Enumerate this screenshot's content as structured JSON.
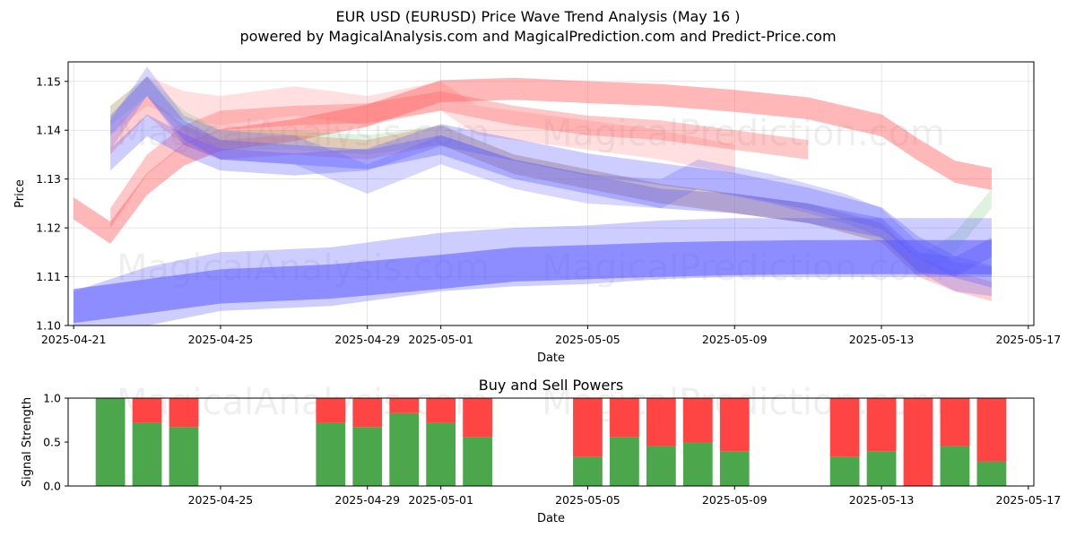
{
  "title": "EUR USD (EURUSD) Price Wave Trend Analysis (May 16 )",
  "subtitle": "powered by MagicalAnalysis.com and MagicalPrediction.com and Predict-Price.com",
  "watermarks": [
    "MagicalAnalysis.com",
    "MagicalPrediction.com"
  ],
  "chart_data": [
    {
      "type": "area",
      "xlabel": "Date",
      "ylabel": "Price",
      "x_range": [
        "2025-04-21",
        "2025-05-17"
      ],
      "ylim": [
        1.1,
        1.154
      ],
      "x_ticks": [
        "2025-04-21",
        "2025-04-25",
        "2025-04-29",
        "2025-05-01",
        "2025-05-05",
        "2025-05-09",
        "2025-05-13",
        "2025-05-17"
      ],
      "y_ticks": [
        "1.10",
        "1.11",
        "1.12",
        "1.13",
        "1.14",
        "1.15"
      ],
      "grid": true,
      "colors": {
        "red": "#ff6060",
        "blue": "#5a5aff",
        "green": "#60c060"
      },
      "bands": [
        {
          "color": "red",
          "opacity": 0.45,
          "width": 0.0045,
          "points": [
            [
              "2025-04-21",
              1.124
            ],
            [
              "2025-04-22",
              1.119
            ],
            [
              "2025-04-23",
              1.129
            ],
            [
              "2025-04-24",
              1.135
            ],
            [
              "2025-04-25",
              1.138
            ],
            [
              "2025-04-27",
              1.14
            ],
            [
              "2025-04-29",
              1.143
            ],
            [
              "2025-05-01",
              1.148
            ],
            [
              "2025-05-03",
              1.1485
            ],
            [
              "2025-05-05",
              1.1478
            ],
            [
              "2025-05-07",
              1.1472
            ],
            [
              "2025-05-09",
              1.146
            ],
            [
              "2025-05-11",
              1.1445
            ],
            [
              "2025-05-13",
              1.141
            ],
            [
              "2025-05-14",
              1.136
            ],
            [
              "2025-05-15",
              1.1315
            ],
            [
              "2025-05-16",
              1.13
            ]
          ]
        },
        {
          "color": "red",
          "opacity": 0.35,
          "width": 0.004,
          "points": [
            [
              "2025-04-22",
              1.122
            ],
            [
              "2025-04-23",
              1.133
            ],
            [
              "2025-04-24",
              1.139
            ],
            [
              "2025-04-25",
              1.142
            ],
            [
              "2025-04-27",
              1.143
            ],
            [
              "2025-04-29",
              1.1435
            ],
            [
              "2025-05-01",
              1.146
            ],
            [
              "2025-05-03",
              1.143
            ],
            [
              "2025-05-05",
              1.141
            ],
            [
              "2025-05-07",
              1.14
            ],
            [
              "2025-05-09",
              1.138
            ],
            [
              "2025-05-11",
              1.136
            ]
          ]
        },
        {
          "color": "red",
          "opacity": 0.2,
          "width": 0.006,
          "points": [
            [
              "2025-04-22",
              1.142
            ],
            [
              "2025-04-23",
              1.148
            ],
            [
              "2025-04-24",
              1.145
            ],
            [
              "2025-04-25",
              1.144
            ],
            [
              "2025-04-27",
              1.146
            ],
            [
              "2025-04-29",
              1.144
            ],
            [
              "2025-05-01",
              1.147
            ],
            [
              "2025-05-02",
              1.142
            ],
            [
              "2025-05-05",
              1.139
            ],
            [
              "2025-05-07",
              1.137
            ],
            [
              "2025-05-09",
              1.134
            ]
          ]
        },
        {
          "color": "red",
          "opacity": 0.3,
          "width": 0.004,
          "points": [
            [
              "2025-04-22",
              1.137
            ],
            [
              "2025-04-23",
              1.145
            ],
            [
              "2025-04-24",
              1.139
            ],
            [
              "2025-04-25",
              1.136
            ],
            [
              "2025-04-27",
              1.137
            ],
            [
              "2025-04-29",
              1.136
            ],
            [
              "2025-05-01",
              1.139
            ],
            [
              "2025-05-03",
              1.133
            ],
            [
              "2025-05-05",
              1.13
            ],
            [
              "2025-05-07",
              1.127
            ],
            [
              "2025-05-09",
              1.125
            ],
            [
              "2025-05-11",
              1.123
            ],
            [
              "2025-05-13",
              1.119
            ],
            [
              "2025-05-14",
              1.112
            ],
            [
              "2025-05-15",
              1.109
            ],
            [
              "2025-05-16",
              1.107
            ]
          ]
        },
        {
          "color": "green",
          "opacity": 0.2,
          "width": 0.004,
          "points": [
            [
              "2025-04-22",
              1.143
            ],
            [
              "2025-04-23",
              1.149
            ],
            [
              "2025-04-24",
              1.142
            ],
            [
              "2025-04-25",
              1.138
            ],
            [
              "2025-04-27",
              1.138
            ],
            [
              "2025-04-29",
              1.137
            ],
            [
              "2025-05-01",
              1.139
            ],
            [
              "2025-05-03",
              1.133
            ],
            [
              "2025-05-05",
              1.13
            ],
            [
              "2025-05-07",
              1.127
            ],
            [
              "2025-05-09",
              1.125
            ],
            [
              "2025-05-11",
              1.123
            ],
            [
              "2025-05-13",
              1.119
            ],
            [
              "2025-05-14",
              1.112
            ],
            [
              "2025-05-15",
              1.117
            ],
            [
              "2025-05-16",
              1.126
            ]
          ]
        },
        {
          "color": "blue",
          "opacity": 0.35,
          "width": 0.004,
          "points": [
            [
              "2025-04-22",
              1.141
            ],
            [
              "2025-04-23",
              1.149
            ],
            [
              "2025-04-24",
              1.14
            ],
            [
              "2025-04-25",
              1.136
            ],
            [
              "2025-04-27",
              1.135
            ],
            [
              "2025-04-29",
              1.134
            ],
            [
              "2025-05-01",
              1.137
            ],
            [
              "2025-05-03",
              1.132
            ],
            [
              "2025-05-05",
              1.129
            ],
            [
              "2025-05-07",
              1.126
            ],
            [
              "2025-05-09",
              1.125
            ],
            [
              "2025-05-11",
              1.123
            ],
            [
              "2025-05-13",
              1.12
            ],
            [
              "2025-05-14",
              1.113
            ],
            [
              "2025-05-15",
              1.112
            ],
            [
              "2025-05-16",
              1.116
            ]
          ]
        },
        {
          "color": "blue",
          "opacity": 0.25,
          "width": 0.006,
          "points": [
            [
              "2025-04-22",
              1.139
            ],
            [
              "2025-04-23",
              1.15
            ],
            [
              "2025-04-24",
              1.14
            ],
            [
              "2025-04-25",
              1.137
            ],
            [
              "2025-04-27",
              1.136
            ],
            [
              "2025-04-29",
              1.13
            ],
            [
              "2025-05-01",
              1.136
            ],
            [
              "2025-05-03",
              1.131
            ],
            [
              "2025-05-05",
              1.128
            ],
            [
              "2025-05-07",
              1.127
            ],
            [
              "2025-05-08",
              1.131
            ],
            [
              "2025-05-10",
              1.128
            ],
            [
              "2025-05-12",
              1.124
            ],
            [
              "2025-05-13",
              1.121
            ],
            [
              "2025-05-14",
              1.114
            ],
            [
              "2025-05-15",
              1.11
            ],
            [
              "2025-05-16",
              1.109
            ]
          ]
        },
        {
          "color": "blue",
          "opacity": 0.3,
          "width": 0.0045,
          "points": [
            [
              "2025-04-22",
              1.134
            ],
            [
              "2025-04-23",
              1.141
            ],
            [
              "2025-04-24",
              1.137
            ],
            [
              "2025-04-25",
              1.134
            ],
            [
              "2025-04-27",
              1.133
            ],
            [
              "2025-04-29",
              1.134
            ],
            [
              "2025-05-01",
              1.139
            ],
            [
              "2025-05-03",
              1.136
            ],
            [
              "2025-05-05",
              1.133
            ],
            [
              "2025-05-07",
              1.131
            ],
            [
              "2025-05-09",
              1.129
            ],
            [
              "2025-05-11",
              1.126
            ],
            [
              "2025-05-13",
              1.122
            ],
            [
              "2025-05-14",
              1.116
            ],
            [
              "2025-05-15",
              1.112
            ],
            [
              "2025-05-16",
              1.11
            ]
          ]
        },
        {
          "color": "blue",
          "opacity": 0.55,
          "width": 0.007,
          "points": [
            [
              "2025-04-21",
              1.104
            ],
            [
              "2025-04-23",
              1.106
            ],
            [
              "2025-04-25",
              1.108
            ],
            [
              "2025-04-28",
              1.109
            ],
            [
              "2025-05-01",
              1.111
            ],
            [
              "2025-05-03",
              1.1125
            ],
            [
              "2025-05-05",
              1.113
            ],
            [
              "2025-05-07",
              1.1135
            ],
            [
              "2025-05-09",
              1.1138
            ],
            [
              "2025-05-11",
              1.114
            ],
            [
              "2025-05-13",
              1.114
            ],
            [
              "2025-05-16",
              1.114
            ]
          ]
        },
        {
          "color": "blue",
          "opacity": 0.3,
          "width": 0.012,
          "points": [
            [
              "2025-04-21",
              1.101
            ],
            [
              "2025-04-23",
              1.106
            ],
            [
              "2025-04-25",
              1.109
            ],
            [
              "2025-04-28",
              1.11
            ],
            [
              "2025-05-01",
              1.113
            ],
            [
              "2025-05-03",
              1.114
            ],
            [
              "2025-05-05",
              1.1145
            ],
            [
              "2025-05-07",
              1.1155
            ],
            [
              "2025-05-09",
              1.116
            ],
            [
              "2025-05-11",
              1.116
            ],
            [
              "2025-05-13",
              1.116
            ],
            [
              "2025-05-16",
              1.116
            ]
          ]
        }
      ]
    },
    {
      "type": "bar",
      "title": "Buy and Sell Powers",
      "xlabel": "Date",
      "ylabel": "Signal Strength",
      "ylim": [
        0,
        1.0
      ],
      "y_ticks": [
        "0.0",
        "0.5",
        "1.0"
      ],
      "x_ticks": [
        "2025-04-25",
        "2025-04-29",
        "2025-05-01",
        "2025-05-05",
        "2025-05-09",
        "2025-05-13",
        "2025-05-17"
      ],
      "colors": {
        "buy": "#4ca64c",
        "sell": "#ff4444"
      },
      "series": [
        {
          "name": "buy",
          "values": [
            1.0,
            0.72,
            0.67,
            0.72,
            0.67,
            0.83,
            0.72,
            0.56,
            0.33,
            0.56,
            0.45,
            0.5,
            0.39,
            0.33,
            0.39,
            0.0,
            0.45,
            0.28
          ]
        },
        {
          "name": "sell",
          "values": [
            0.0,
            0.28,
            0.33,
            0.28,
            0.33,
            0.17,
            0.28,
            0.44,
            0.67,
            0.44,
            0.55,
            0.5,
            0.61,
            0.67,
            0.61,
            1.0,
            0.55,
            0.72
          ]
        }
      ],
      "categories": [
        "2025-04-22",
        "2025-04-23",
        "2025-04-24",
        "2025-04-28",
        "2025-04-29",
        "2025-04-30",
        "2025-05-01",
        "2025-05-02",
        "2025-05-05",
        "2025-05-06",
        "2025-05-07",
        "2025-05-08",
        "2025-05-09",
        "2025-05-12",
        "2025-05-13",
        "2025-05-14",
        "2025-05-15",
        "2025-05-16"
      ]
    }
  ]
}
